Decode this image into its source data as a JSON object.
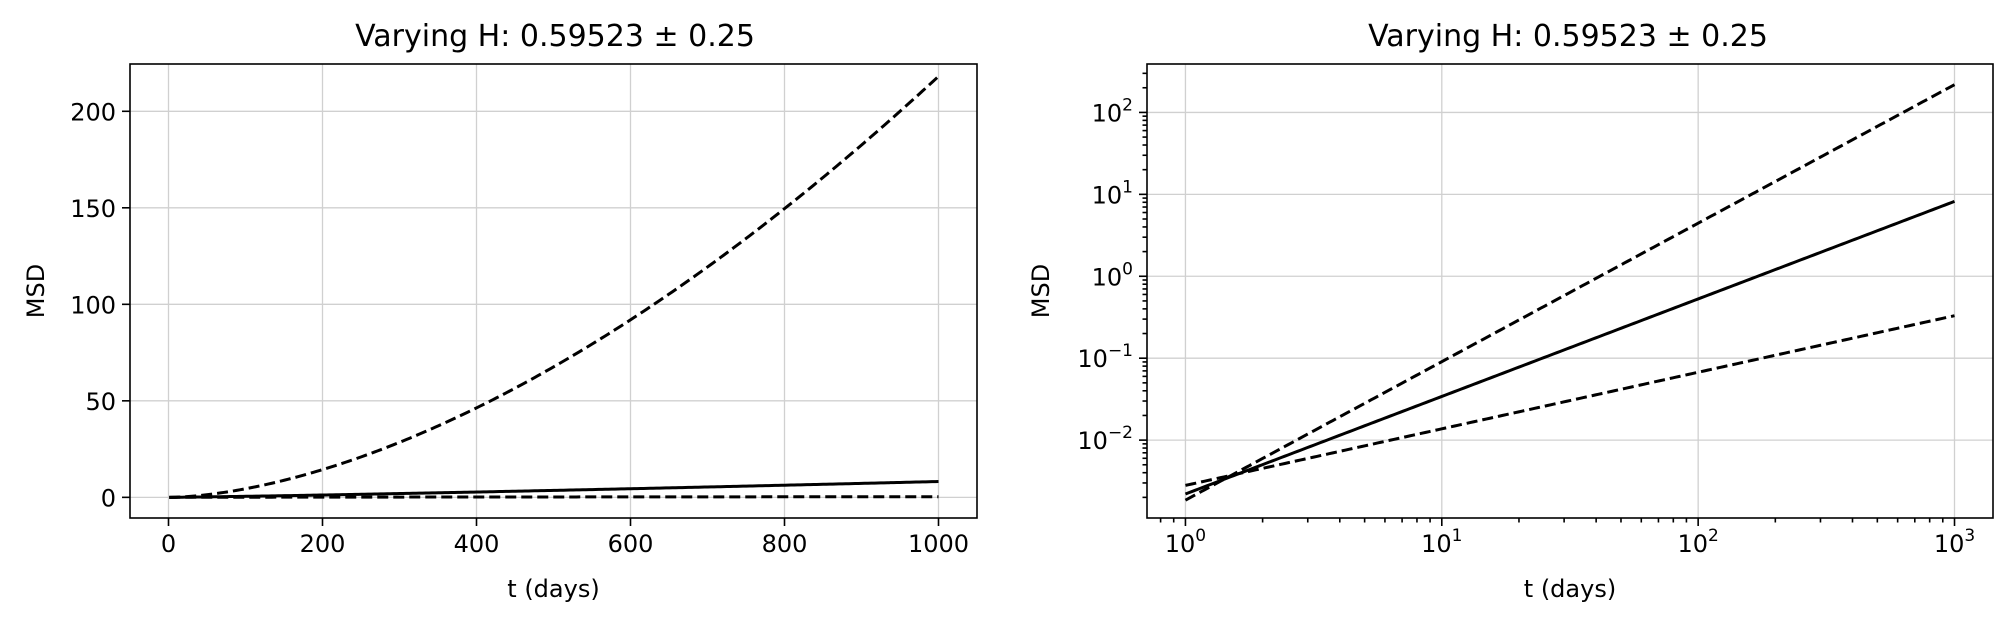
{
  "chart_data": [
    {
      "type": "line",
      "title": "Varying H: 0.59523 ± 0.25",
      "xlabel": "t (days)",
      "ylabel": "MSD",
      "xscale": "linear",
      "yscale": "linear",
      "xlim": [
        -50,
        1050
      ],
      "ylim": [
        -10.7,
        224.5
      ],
      "grid": true,
      "xticks": [
        {
          "value": 0,
          "label": "0"
        },
        {
          "value": 200,
          "label": "200"
        },
        {
          "value": 400,
          "label": "400"
        },
        {
          "value": 600,
          "label": "600"
        },
        {
          "value": 800,
          "label": "800"
        },
        {
          "value": 1000,
          "label": "1000"
        }
      ],
      "yticks": [
        {
          "value": 0,
          "label": "0"
        },
        {
          "value": 50,
          "label": "50"
        },
        {
          "value": 100,
          "label": "100"
        },
        {
          "value": 150,
          "label": "150"
        },
        {
          "value": 200,
          "label": "200"
        }
      ],
      "series": [
        {
          "style": "dashed",
          "model": "power",
          "coef": 0.00185,
          "exponent": 1.6905,
          "x_start": 1,
          "x_end": 1000
        },
        {
          "style": "solid",
          "model": "power",
          "coef": 0.0022,
          "exponent": 1.1905,
          "x_start": 1,
          "x_end": 1000
        },
        {
          "style": "dashed",
          "model": "power",
          "coef": 0.0028,
          "exponent": 0.6905,
          "x_start": 1,
          "x_end": 1000
        }
      ]
    },
    {
      "type": "line",
      "title": "Varying H: 0.59523 ± 0.25",
      "xlabel": "t (days)",
      "ylabel": "MSD",
      "xscale": "log",
      "yscale": "log",
      "xlim": [
        0.708,
        1413
      ],
      "ylim": [
        0.00112,
        390
      ],
      "grid": true,
      "xticks": [
        {
          "value": 1,
          "base": "10",
          "exp": "0"
        },
        {
          "value": 10,
          "base": "10",
          "exp": "1"
        },
        {
          "value": 100,
          "base": "10",
          "exp": "2"
        },
        {
          "value": 1000,
          "base": "10",
          "exp": "3"
        }
      ],
      "yticks": [
        {
          "value": 0.01,
          "base": "10",
          "exp": "−2"
        },
        {
          "value": 0.1,
          "base": "10",
          "exp": "−1"
        },
        {
          "value": 1,
          "base": "10",
          "exp": "0"
        },
        {
          "value": 10,
          "base": "10",
          "exp": "1"
        },
        {
          "value": 100,
          "base": "10",
          "exp": "2"
        }
      ],
      "series": [
        {
          "style": "dashed",
          "model": "power",
          "coef": 0.00185,
          "exponent": 1.6905,
          "x_start": 1,
          "x_end": 1000
        },
        {
          "style": "solid",
          "model": "power",
          "coef": 0.0022,
          "exponent": 1.1905,
          "x_start": 1,
          "x_end": 1000
        },
        {
          "style": "dashed",
          "model": "power",
          "coef": 0.0028,
          "exponent": 0.6905,
          "x_start": 1,
          "x_end": 1000
        }
      ]
    }
  ]
}
